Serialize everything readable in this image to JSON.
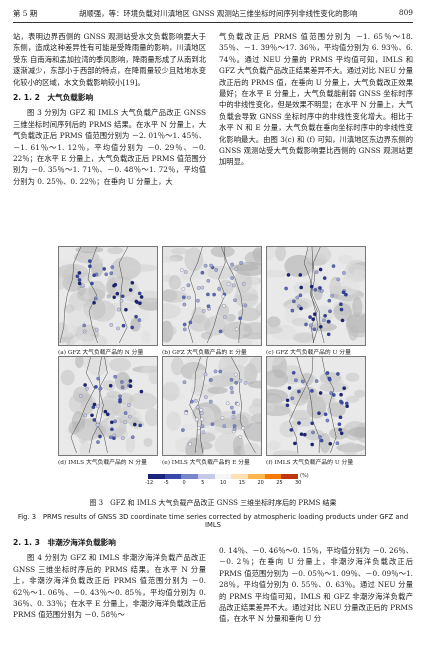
{
  "header": {
    "issue": "第 5 期",
    "title": "胡顺强，等：环境负载对川滇地区 GNSS 观测站三维坐标时间序列非线性变化的影响",
    "page": "809"
  },
  "left_top_text": "站，表明边界西侧的 GNSS 观测站受水文负载影响要大于东侧，造成这种差异性有可能是受降雨量的影响，川滇地区受东 自南海和孟加拉湾的季风影响，降雨量形成了从南到北逐渐减少，东部小于西部的特点，在降雨量较少且陆地水变化较小的区域，水文负载影响较小[19]。",
  "section_212": {
    "heading": "2. 1. 2　大气负载影响",
    "body": "图 3 分别为 GFZ 和 IMLS 大气负载产品改正 GNSS 三维坐标时间序列后的 PRMS 结果。在水平 N 分量上，大气负载改正后 PRMS 值范围分别为 －2. 01％～1. 45％、－1. 61％～1. 12％，平均值分别为 －0. 29％、－0. 22％；在水平 E 分量上，大气负载改正后 PRMS 值范围分别为 －0. 35％～1. 71％、－0. 48％～1. 72％，平均值分别为 0. 25％、0. 22％；在垂向 U 分量上，大"
  },
  "right_top_text": "气负载改正后 PRMS 值范围分别为 －1. 65％～18. 35％、－1. 39％～17. 36％，平均值分别为 6. 93％、6. 74％。通过 NEU 分量的 PRMS 平均值可知，IMLS 和 GFZ 大气负载产品改正结果差异不大。通过对比 NEU 分量改正后的 PRMS 值，在垂向 U 分量上，大气负载改正效果最好；在水平 E 分量上，大气负载能削弱 GNSS 坐标时序中的非线性变化，但是效果不明显；在水平 N 分量上，大气负载会导致 GNSS 坐标时序中的非线性变化增大。相比于水平 N 和 E 分量，大气负载在垂向坐标时序中的非线性变化影响最大。由图 3(c) 和 (f) 可知，川滇地区东边界东侧的 GNSS 观测站受大气负载影响要比西侧的 GNSS 观测站更加明显。",
  "figure": {
    "panel_captions": [
      "(a) GFZ 大气负载产品的 N 分量",
      "(b) GFZ 大气负载产品的 E 分量",
      "(c) GFZ 大气负载产品的 U 分量",
      "(d) IMLS 大气负载产品的 N 分量",
      "(e) IMLS 大气负载产品的 E 分量",
      "(f) IMLS 大气负载产品的 U 分量"
    ],
    "colorbar_ticks": [
      "-12",
      "-5",
      "0",
      "5",
      "10",
      "15",
      "20",
      "25",
      "30"
    ],
    "colorbar_unit": "(%)",
    "colorbar_colors": [
      "#1a237e",
      "#3949ab",
      "#7986cb",
      "#c5cae9",
      "#f5f5f5",
      "#ffe0b2",
      "#ffb74d",
      "#f57c00",
      "#bf360c"
    ],
    "caption_cn": "图 3　GFZ 和 IMLS 大气负载产品改正 GNSS 三维坐标时序后的 PRMS 结果",
    "caption_en": "Fig. 3　PRMS results of GNSS 3D coordinate time series corrected by atmospheric loading products under GFZ and IMLS"
  },
  "section_213": {
    "heading": "2. 1. 3　非潮汐海洋负载影响",
    "body": "图 4 分别为 GFZ 和 IMLS 非潮汐海洋负载产品改正 GNSS 三维坐标时序后的 PRMS 结果。在水平 N 分量上，非潮汐海洋负载改正后 PRMS 值范围分别为 －0. 62％～1. 06％、－0. 43％～0. 85％，平均值分别为 0. 36％、0. 33％；在水平 E 分量上，非潮汐海洋负载改正后 PRMS 值范围分别为 －0. 58％～"
  },
  "right_bottom_text": "0. 14％、－0. 46％～0. 15％，平均值分别为 －0. 26％、－0. 2％；在垂向 U 分量上，非潮汐海洋负载改正后 PRMS 值范围分别为 －0. 05％～1. 09％、－0. 09％～1. 28％，平均值分别为 0. 55％、0. 63％。通过 NEU 分量的 PRMS 平均值可知，IMLS 和 GFZ 非潮汐海洋负载产品改正结果差异不大。通过对比 NEU 分量改正后的 PRMS 值，在水平 N 分量和垂向 U 分"
}
